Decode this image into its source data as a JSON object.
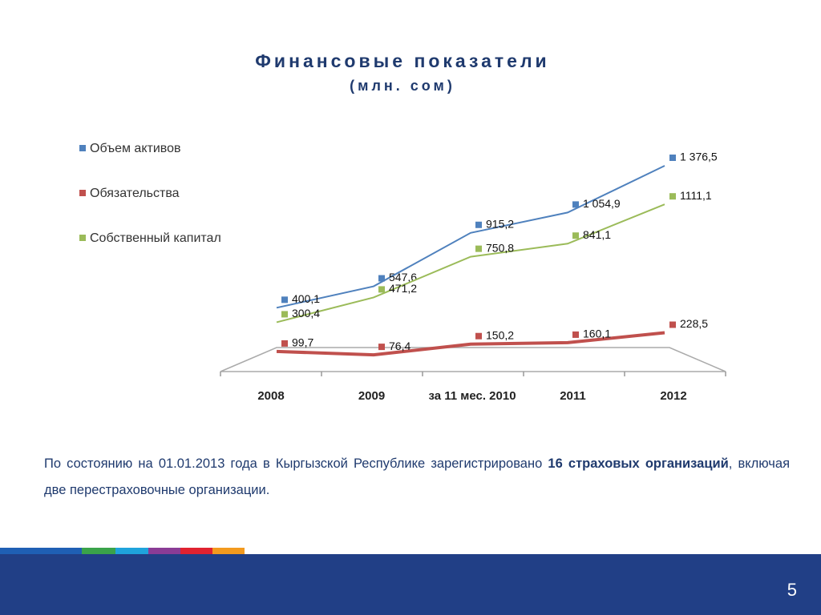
{
  "chart_data": {
    "type": "line",
    "title": "Финансовые показатели",
    "subtitle": "(млн. сом)",
    "categories": [
      "2008",
      "2009",
      "за 11 мес. 2010",
      "2011",
      "2012"
    ],
    "series": [
      {
        "name": "Объем активов",
        "color": "#4f81bd",
        "values": [
          400.1,
          547.6,
          915.2,
          1054.9,
          1376.5
        ],
        "value_labels": [
          "400,1",
          "547,6",
          "915,2",
          "1 054,9",
          "1 376,5"
        ]
      },
      {
        "name": "Обязательства",
        "color": "#c0504d",
        "values": [
          99.7,
          76.4,
          150.2,
          160.1,
          228.5
        ],
        "value_labels": [
          "99,7",
          "76,4",
          "150,2",
          "160,1",
          "228,5"
        ]
      },
      {
        "name": "Собственный капитал",
        "color": "#9bbb59",
        "values": [
          300.4,
          471.2,
          750.8,
          841.1,
          1111.1
        ],
        "value_labels": [
          "300,4",
          "471,2",
          "750,8",
          "841,1",
          "1111,1"
        ]
      }
    ],
    "legend": "left"
  },
  "slide": {
    "paragraph": [
      "По состоянию на 01.01.2013 года в Кыргызской Республике зарегистрировано ",
      "16 страховых организаций",
      ", включая две перестраховочные организации."
    ],
    "page_number": "5"
  }
}
